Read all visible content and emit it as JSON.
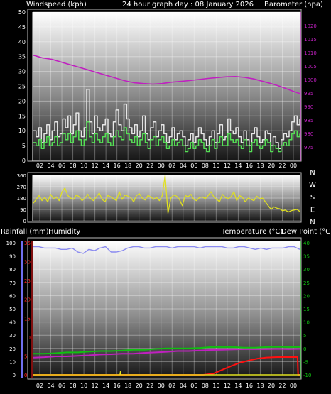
{
  "header": {
    "windspeed_label": "Windspeed (kph)",
    "title": "24 hour graph day : 08 January 2026",
    "barometer_label": "Barometer (hpa)"
  },
  "lower_header": {
    "rainfall_label": "Rainfall (mm)",
    "humidity_label": "Humidity",
    "temperature_label": "Temperature (°C)",
    "dewpoint_label": "Dew Point (°C)"
  },
  "colors": {
    "windspeed": "#e6e6e6",
    "wind_avg": "#55e055",
    "barometer": "#c020c0",
    "direction": "#e0e020",
    "humidity": "#8a8af0",
    "temperature": "#10c010",
    "dewpoint": "#c020c0",
    "rainfall": "#ff1010",
    "rain_rate": "#e0e020"
  },
  "time_labels": [
    "02",
    "04",
    "06",
    "08",
    "10",
    "12",
    "14",
    "16",
    "18",
    "20",
    "22",
    "00",
    "02",
    "04",
    "06",
    "08",
    "10",
    "12",
    "14",
    "16",
    "18",
    "20",
    "22",
    "00"
  ],
  "chart_data": [
    {
      "type": "line",
      "title": "24 hour graph day : 08 January 2026",
      "ylabel": "Windspeed (kph)",
      "y2label": "Barometer (hpa)",
      "ylim": [
        0,
        50
      ],
      "y2lim": [
        970,
        1025
      ],
      "yticks": [
        0,
        5,
        10,
        15,
        20,
        25,
        30,
        35,
        40,
        45,
        50
      ],
      "y2ticks": [
        975,
        980,
        985,
        990,
        995,
        1000,
        1005,
        1010,
        1015,
        1020
      ],
      "grid": true,
      "series": [
        {
          "name": "Windspeed",
          "values": [
            10,
            8,
            11,
            6,
            9,
            12,
            7,
            10,
            13,
            8,
            9,
            14,
            11,
            15,
            9,
            12,
            16,
            10,
            8,
            11,
            24,
            13,
            9,
            15,
            11,
            10,
            12,
            14,
            9,
            8,
            13,
            17,
            12,
            10,
            19,
            14,
            11,
            9,
            12,
            8,
            10,
            15,
            9,
            7,
            11,
            13,
            8,
            10,
            12,
            9,
            6,
            8,
            11,
            7,
            9,
            10,
            8,
            5,
            7,
            9,
            6,
            8,
            11,
            9,
            7,
            5,
            8,
            10,
            6,
            9,
            12,
            7,
            8,
            14,
            10,
            9,
            11,
            8,
            6,
            10,
            7,
            5,
            9,
            11,
            8,
            6,
            7,
            10,
            9,
            5,
            8,
            6,
            4,
            7,
            9,
            8,
            10,
            13,
            15,
            12,
            14
          ]
        },
        {
          "name": "Wind Average",
          "values": [
            6,
            5,
            7,
            4,
            6,
            8,
            5,
            6,
            8,
            5,
            6,
            9,
            7,
            9,
            6,
            8,
            10,
            7,
            5,
            7,
            13,
            8,
            6,
            9,
            7,
            6,
            8,
            9,
            6,
            5,
            8,
            10,
            8,
            7,
            11,
            9,
            7,
            6,
            8,
            5,
            7,
            9,
            6,
            4,
            7,
            8,
            5,
            7,
            8,
            6,
            4,
            5,
            7,
            5,
            6,
            7,
            5,
            3,
            4,
            6,
            4,
            5,
            7,
            6,
            4,
            3,
            5,
            7,
            4,
            6,
            8,
            5,
            5,
            9,
            7,
            6,
            7,
            5,
            4,
            7,
            5,
            3,
            6,
            7,
            5,
            4,
            5,
            7,
            6,
            3,
            5,
            4,
            3,
            5,
            6,
            5,
            7,
            9,
            10,
            8,
            9
          ]
        },
        {
          "name": "Barometer",
          "axis": "y2",
          "values": [
            1009,
            1008,
            1007.5,
            1006.5,
            1005.5,
            1004.5,
            1003.5,
            1002.5,
            1001.5,
            1000.5,
            999.5,
            998.8,
            998.5,
            998.3,
            998.5,
            999,
            999.3,
            999.6,
            1000,
            1000.4,
            1000.7,
            1001,
            1001.1,
            1000.8,
            1000.2,
            999.3,
            998.4,
            997.3,
            996,
            994.8
          ]
        }
      ]
    },
    {
      "type": "line",
      "ylabel": "Wind Direction",
      "ylim": [
        0,
        360
      ],
      "yticks": [
        0,
        90,
        180,
        270,
        360
      ],
      "compass_labels": [
        "N",
        "W",
        "S",
        "E",
        "N"
      ],
      "grid": true,
      "series": [
        {
          "name": "Wind Direction",
          "values": [
            140,
            170,
            200,
            160,
            185,
            150,
            210,
            175,
            190,
            160,
            230,
            260,
            200,
            180,
            170,
            205,
            190,
            160,
            180,
            210,
            175,
            160,
            190,
            220,
            170,
            150,
            200,
            190,
            175,
            160,
            230,
            170,
            205,
            195,
            185,
            150,
            200,
            215,
            180,
            165,
            200,
            190,
            170,
            185,
            160,
            200,
            360,
            60,
            180,
            205,
            195,
            170,
            120,
            200,
            190,
            210,
            170,
            160,
            185,
            190,
            175,
            200,
            230,
            190,
            170,
            150,
            210,
            185,
            175,
            190,
            230,
            160,
            200,
            185,
            150,
            180,
            170,
            160,
            195,
            175,
            180,
            150,
            120,
            90,
            110,
            100,
            95,
            80,
            85,
            70,
            80,
            85,
            90,
            75
          ]
        }
      ]
    },
    {
      "type": "line",
      "ylabel": "Humidity",
      "ylim": [
        0,
        100
      ],
      "yticks": [
        0,
        10,
        20,
        30,
        40,
        50,
        60,
        70,
        80,
        90,
        100
      ],
      "rainfall_ticks": [
        0,
        5,
        10,
        15,
        20,
        25,
        30,
        35
      ],
      "y2lim": [
        -10,
        40
      ],
      "y2ticks": [
        -10,
        -5,
        0,
        5,
        10,
        15,
        20,
        25,
        30,
        35,
        40
      ],
      "grid": true,
      "series": [
        {
          "name": "Humidity",
          "values": [
            97,
            97,
            96,
            96,
            96,
            95,
            95,
            96,
            93,
            92,
            95,
            94,
            96,
            97,
            93,
            93,
            94,
            96,
            97,
            97,
            96,
            96,
            97,
            97,
            97,
            96,
            97,
            97,
            97,
            97,
            96,
            97,
            97,
            97,
            97,
            96,
            96,
            97,
            97,
            96,
            95,
            96,
            95,
            96,
            96,
            96,
            97,
            97,
            95
          ]
        },
        {
          "name": "Temperature",
          "axis": "y2",
          "values": [
            -2,
            -2,
            -1.8,
            -1.5,
            -1.5,
            -1.2,
            -1,
            -1,
            -0.8,
            -0.5,
            -0.5,
            -0.2,
            0,
            0,
            0,
            0.2,
            0.5,
            0.5,
            0.5,
            0.3,
            0.3,
            0.5,
            0.6,
            0.5,
            0.5
          ]
        },
        {
          "name": "Dew Point",
          "axis": "y2",
          "values": [
            -3.5,
            -3.3,
            -3,
            -3,
            -2.8,
            -2.6,
            -2.3,
            -2.2,
            -2,
            -2,
            -1.7,
            -1.5,
            -1.3,
            -1,
            -1,
            -0.8,
            -0.6,
            -0.5,
            -0.4,
            -0.3,
            -0.3,
            -0.3,
            -0.2,
            -0.3,
            -0.2
          ]
        },
        {
          "name": "Rainfall",
          "unit": "mm",
          "x": [
            0,
            15.3,
            16.2,
            17,
            17.8,
            18.6,
            19.4,
            20.2,
            21,
            22,
            23,
            23.8,
            23.85,
            24
          ],
          "values": [
            0,
            0,
            0.3,
            1.3,
            2.3,
            3.2,
            3.8,
            4.3,
            4.6,
            4.7,
            4.7,
            4.7,
            0,
            0
          ]
        },
        {
          "name": "Rain Rate",
          "x": [
            0,
            7.8,
            7.85,
            7.9,
            24
          ],
          "values": [
            0,
            0,
            1,
            0,
            0
          ]
        }
      ]
    }
  ]
}
